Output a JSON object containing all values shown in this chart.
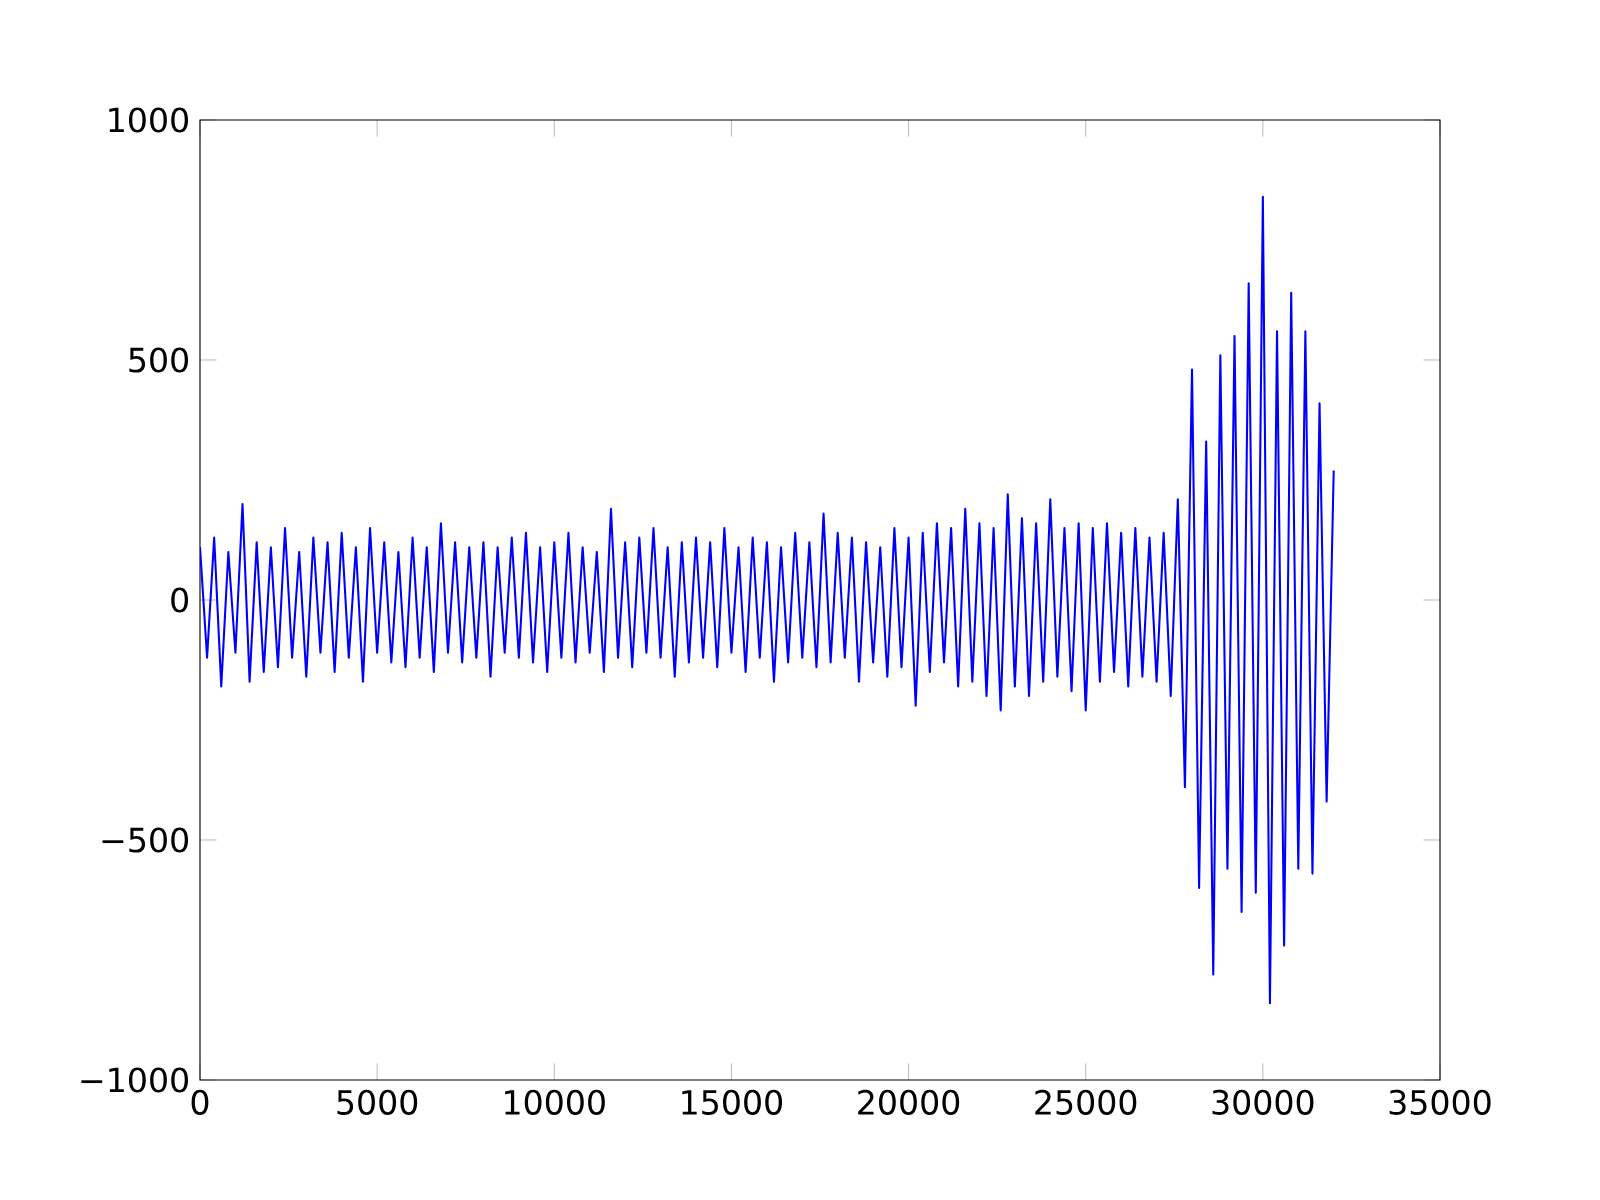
{
  "chart_data": {
    "type": "line",
    "x": [
      0,
      200,
      400,
      600,
      800,
      1000,
      1200,
      1400,
      1600,
      1800,
      2000,
      2200,
      2400,
      2600,
      2800,
      3000,
      3200,
      3400,
      3600,
      3800,
      4000,
      4200,
      4400,
      4600,
      4800,
      5000,
      5200,
      5400,
      5600,
      5800,
      6000,
      6200,
      6400,
      6600,
      6800,
      7000,
      7200,
      7400,
      7600,
      7800,
      8000,
      8200,
      8400,
      8600,
      8800,
      9000,
      9200,
      9400,
      9600,
      9800,
      10000,
      10200,
      10400,
      10600,
      10800,
      11000,
      11200,
      11400,
      11600,
      11800,
      12000,
      12200,
      12400,
      12600,
      12800,
      13000,
      13200,
      13400,
      13600,
      13800,
      14000,
      14200,
      14400,
      14600,
      14800,
      15000,
      15200,
      15400,
      15600,
      15800,
      16000,
      16200,
      16400,
      16600,
      16800,
      17000,
      17200,
      17400,
      17600,
      17800,
      18000,
      18200,
      18400,
      18600,
      18800,
      19000,
      19200,
      19400,
      19600,
      19800,
      20000,
      20200,
      20400,
      20600,
      20800,
      21000,
      21200,
      21400,
      21600,
      21800,
      22000,
      22200,
      22400,
      22600,
      22800,
      23000,
      23200,
      23400,
      23600,
      23800,
      24000,
      24200,
      24400,
      24600,
      24800,
      25000,
      25200,
      25400,
      25600,
      25800,
      26000,
      26200,
      26400,
      26600,
      26800,
      27000,
      27200,
      27400,
      27600,
      27800,
      28000,
      28200,
      28400,
      28600,
      28800,
      29000,
      29200,
      29400,
      29600,
      29800,
      30000,
      30200,
      30400,
      30600,
      30800,
      31000,
      31200,
      31400,
      31600,
      31800,
      32000
    ],
    "series": [
      {
        "color": "#0000ff",
        "values": [
          110,
          -120,
          130,
          -180,
          100,
          -110,
          200,
          -170,
          120,
          -150,
          110,
          -140,
          150,
          -120,
          100,
          -160,
          130,
          -110,
          120,
          -150,
          140,
          -120,
          110,
          -170,
          150,
          -110,
          120,
          -130,
          100,
          -140,
          130,
          -120,
          110,
          -150,
          160,
          -110,
          120,
          -130,
          110,
          -120,
          120,
          -160,
          110,
          -110,
          130,
          -120,
          140,
          -130,
          110,
          -150,
          120,
          -120,
          140,
          -130,
          110,
          -110,
          100,
          -150,
          190,
          -120,
          120,
          -140,
          130,
          -110,
          150,
          -120,
          110,
          -160,
          120,
          -130,
          130,
          -120,
          120,
          -140,
          150,
          -110,
          110,
          -150,
          130,
          -120,
          120,
          -170,
          110,
          -130,
          140,
          -120,
          120,
          -140,
          180,
          -130,
          140,
          -120,
          130,
          -170,
          120,
          -130,
          110,
          -160,
          150,
          -140,
          130,
          -220,
          140,
          -150,
          160,
          -130,
          150,
          -180,
          190,
          -170,
          160,
          -200,
          150,
          -230,
          220,
          -180,
          170,
          -200,
          160,
          -170,
          210,
          -160,
          150,
          -190,
          160,
          -230,
          150,
          -170,
          160,
          -150,
          140,
          -180,
          150,
          -160,
          130,
          -170,
          140,
          -200,
          210,
          -390,
          480,
          -600,
          330,
          -780,
          510,
          -560,
          550,
          -650,
          660,
          -610,
          840,
          -840,
          560,
          -720,
          640,
          -560,
          560,
          -570,
          410,
          -420,
          270
        ]
      }
    ],
    "xlim": [
      0,
      35000
    ],
    "ylim": [
      -1000,
      1000
    ],
    "xticks": [
      0,
      5000,
      10000,
      15000,
      20000,
      25000,
      30000,
      35000
    ],
    "yticks": [
      {
        "value": -1000,
        "label": "−1000"
      },
      {
        "value": -500,
        "label": "−500"
      },
      0,
      500,
      1000
    ],
    "grid": false,
    "marker": "none",
    "line_style": "solid"
  }
}
